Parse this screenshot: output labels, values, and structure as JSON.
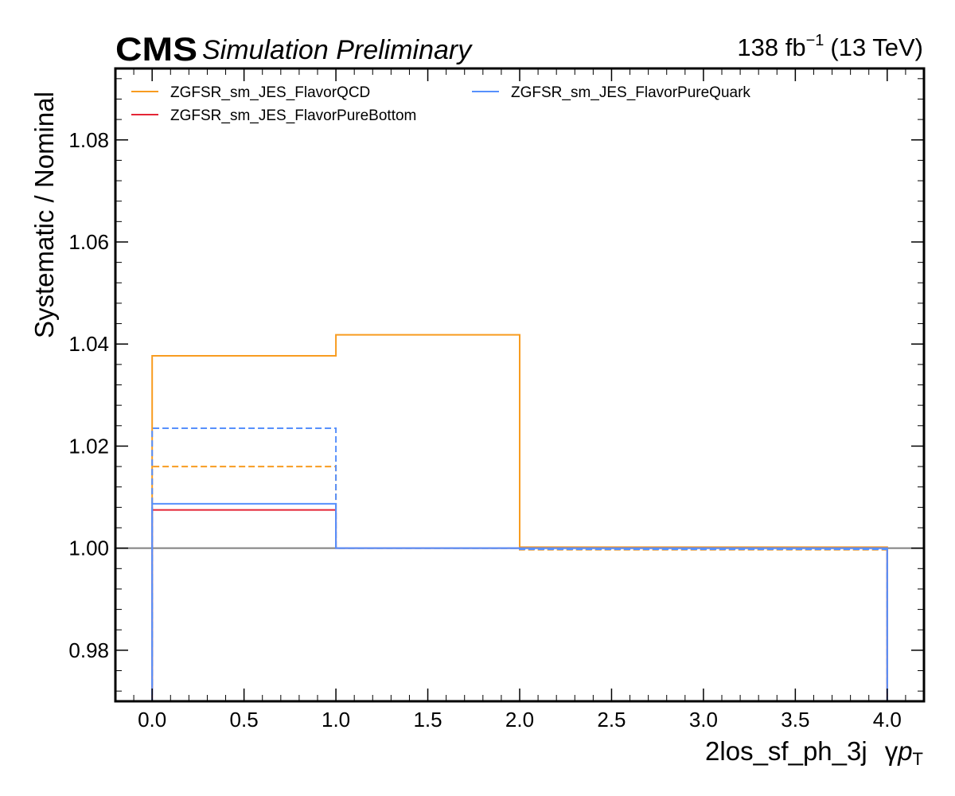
{
  "header": {
    "experiment": "CMS",
    "status": "Simulation Preliminary",
    "lumi_value": "138 fb",
    "lumi_exponent": "−1",
    "energy": "(13 TeV)"
  },
  "chart_data": {
    "type": "line",
    "drawstyle": "steps",
    "xlabel_region": "2los_sf_ph_3j",
    "xlabel_variable": "γ",
    "xlabel_p": "p",
    "xlabel_sub": "T",
    "ylabel": "Systematic / Nominal",
    "xlim": [
      -0.2,
      4.2
    ],
    "ylim": [
      0.97,
      1.094
    ],
    "x_ticks": [
      0.0,
      0.5,
      1.0,
      1.5,
      2.0,
      2.5,
      3.0,
      3.5,
      4.0
    ],
    "x_tick_labels": [
      "0.0",
      "0.5",
      "1.0",
      "1.5",
      "2.0",
      "2.5",
      "3.0",
      "3.5",
      "4.0"
    ],
    "y_ticks": [
      0.98,
      1.0,
      1.02,
      1.04,
      1.06,
      1.08
    ],
    "y_tick_labels": [
      "0.98",
      "1.00",
      "1.02",
      "1.04",
      "1.06",
      "1.08"
    ],
    "reference_line": 1.0,
    "reference_color": "#808080",
    "bin_edges": [
      0,
      1,
      2,
      4
    ],
    "legend_position": "top-left, two columns",
    "series": [
      {
        "name": "ZGFSR_sm_JES_FlavorQCD",
        "color": "#f89c20",
        "values": [
          1.0377,
          1.0418,
          1.0002
        ],
        "style": "solid"
      },
      {
        "name": "",
        "color": "#f89c20",
        "values": [
          1.016,
          1.0,
          0.9997
        ],
        "style": "dashed"
      },
      {
        "name": "ZGFSR_sm_JES_FlavorPureBottom",
        "color": "#e42536",
        "values": [
          1.0075,
          1.0,
          1.0
        ],
        "style": "solid"
      },
      {
        "name": "ZGFSR_sm_JES_FlavorPureQuark",
        "color": "#5790fc",
        "values": [
          1.0087,
          1.0,
          1.0
        ],
        "style": "solid"
      },
      {
        "name": "",
        "color": "#5790fc",
        "values": [
          1.0235,
          1.0,
          0.9998
        ],
        "style": "dashed"
      }
    ]
  }
}
